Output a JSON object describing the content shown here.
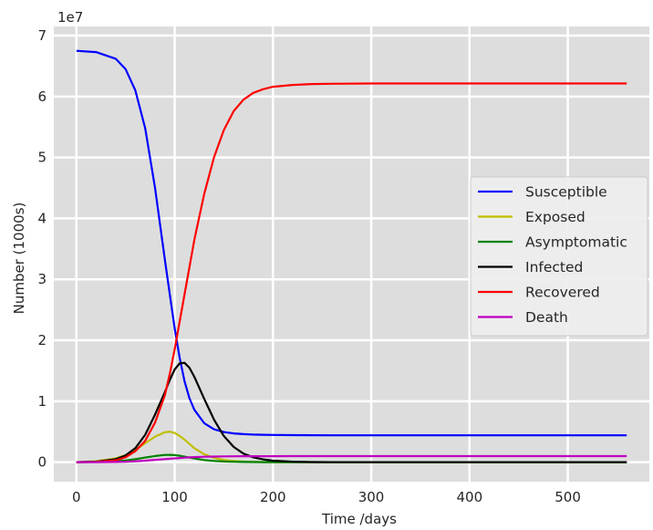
{
  "chart_data": {
    "type": "line",
    "xlabel": "Time /days",
    "ylabel": "Number (1000s)",
    "offset_label": "1e7",
    "xlim": [
      -23,
      583
    ],
    "ylim": [
      -3200000,
      71500000
    ],
    "xticks": [
      0,
      100,
      200,
      300,
      400,
      500
    ],
    "xtick_labels": [
      "0",
      "100",
      "200",
      "300",
      "400",
      "500"
    ],
    "yticks": [
      0,
      10000000,
      20000000,
      30000000,
      40000000,
      50000000,
      60000000,
      70000000
    ],
    "ytick_labels": [
      "0",
      "1",
      "2",
      "3",
      "4",
      "5",
      "6",
      "7"
    ],
    "grid": true,
    "legend_position": "right",
    "x": [
      0,
      20,
      40,
      50,
      60,
      70,
      80,
      90,
      95,
      100,
      105,
      110,
      115,
      120,
      130,
      140,
      150,
      160,
      170,
      180,
      190,
      200,
      220,
      240,
      260,
      300,
      350,
      400,
      450,
      500,
      560
    ],
    "series": [
      {
        "name": "Susceptible",
        "color": "#0000ff",
        "values": [
          67500000,
          67300000,
          66200000,
          64500000,
          61000000,
          54800000,
          45000000,
          33200000,
          27500000,
          22000000,
          17200000,
          13300000,
          10500000,
          8600000,
          6400000,
          5400000,
          4950000,
          4720000,
          4600000,
          4530000,
          4490000,
          4460000,
          4430000,
          4420000,
          4410000,
          4400000,
          4400000,
          4400000,
          4400000,
          4400000,
          4400000
        ]
      },
      {
        "name": "Exposed",
        "color": "#bfbf00",
        "values": [
          0,
          150000,
          600000,
          1150000,
          2000000,
          3100000,
          4200000,
          4900000,
          5000000,
          4800000,
          4300000,
          3700000,
          3000000,
          2300000,
          1300000,
          700000,
          360000,
          180000,
          90000,
          45000,
          20000,
          10000,
          0,
          0,
          0,
          0,
          0,
          0,
          0,
          0,
          0
        ]
      },
      {
        "name": "Asymptomatic",
        "color": "#008000",
        "values": [
          0,
          40000,
          150000,
          280000,
          480000,
          750000,
          1000000,
          1180000,
          1200000,
          1150000,
          1050000,
          900000,
          750000,
          600000,
          350000,
          200000,
          110000,
          60000,
          30000,
          15000,
          8000,
          4000,
          0,
          0,
          0,
          0,
          0,
          0,
          0,
          0,
          0
        ]
      },
      {
        "name": "Infected",
        "color": "#000000",
        "values": [
          0,
          80000,
          500000,
          1100000,
          2300000,
          4500000,
          7800000,
          11500000,
          13500000,
          15200000,
          16200000,
          16300000,
          15500000,
          14000000,
          10400000,
          7000000,
          4300000,
          2500000,
          1400000,
          800000,
          450000,
          250000,
          80000,
          25000,
          10000,
          0,
          0,
          0,
          0,
          0,
          0
        ]
      },
      {
        "name": "Recovered",
        "color": "#ff0000",
        "values": [
          0,
          50000,
          300000,
          800000,
          1800000,
          3500000,
          6500000,
          11000000,
          14500000,
          18500000,
          23000000,
          27500000,
          32000000,
          36500000,
          44000000,
          50000000,
          54500000,
          57600000,
          59500000,
          60600000,
          61200000,
          61600000,
          61900000,
          62050000,
          62100000,
          62150000,
          62150000,
          62150000,
          62150000,
          62150000,
          62150000
        ]
      },
      {
        "name": "Death",
        "color": "#bf00bf",
        "values": [
          0,
          5000,
          30000,
          70000,
          140000,
          250000,
          380000,
          500000,
          560000,
          620000,
          680000,
          730000,
          780000,
          820000,
          880000,
          920000,
          945000,
          960000,
          970000,
          975000,
          980000,
          982000,
          985000,
          987000,
          988000,
          990000,
          990000,
          990000,
          990000,
          990000,
          990000
        ]
      }
    ]
  }
}
